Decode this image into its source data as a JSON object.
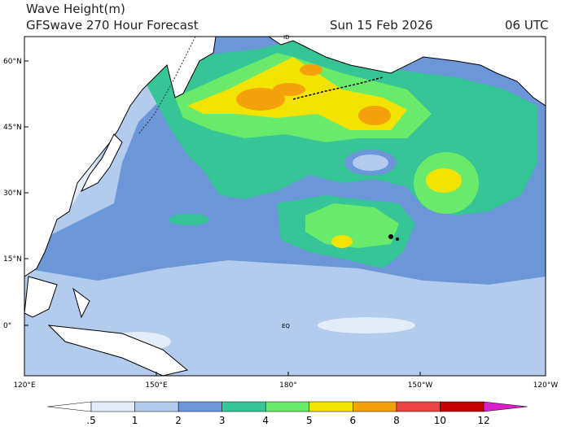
{
  "title": "Wave Height(m)",
  "subtitle": "GFSwave 270 Hour Forecast",
  "date": "Sun 15 Feb 2026",
  "time": "06 UTC",
  "lat_labels": [
    "60°N",
    "45°N",
    "30°N",
    "15°N",
    "0°"
  ],
  "lon_labels": [
    "120°E",
    "150°E",
    "180°",
    "150°W",
    "120°W"
  ],
  "map_labels": [
    "ID",
    "EQ"
  ],
  "colorbar": {
    "levels": [
      {
        "value": 0.5,
        "label": ".5"
      },
      1,
      2,
      3,
      4,
      5,
      6,
      8,
      10,
      12
    ],
    "colors": [
      "#ffffff",
      "#e3ecf8",
      "#b3cbec",
      "#6b96d8",
      "#35c596",
      "#6aea6a",
      "#f2e400",
      "#f5a10c",
      "#e94545",
      "#c20000",
      "#d81ec8"
    ]
  }
}
